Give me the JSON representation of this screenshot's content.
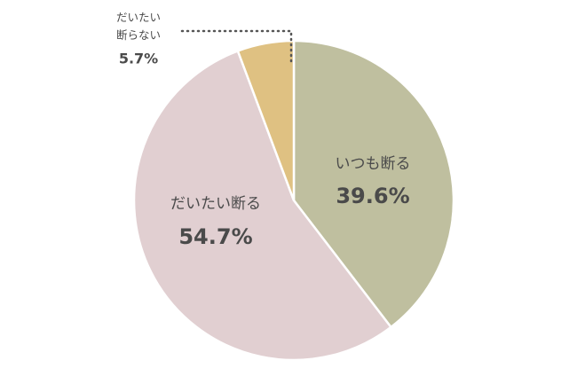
{
  "chart_data": {
    "type": "pie",
    "categories": [
      "いつも断る",
      "だいたい断る",
      "だいたい断らない"
    ],
    "values": [
      39.6,
      54.7,
      5.7
    ],
    "value_labels": [
      "39.6%",
      "54.7%",
      "5.7%"
    ],
    "colors": [
      "#bfbf9f",
      "#e1cfd1",
      "#dfc182"
    ]
  }
}
